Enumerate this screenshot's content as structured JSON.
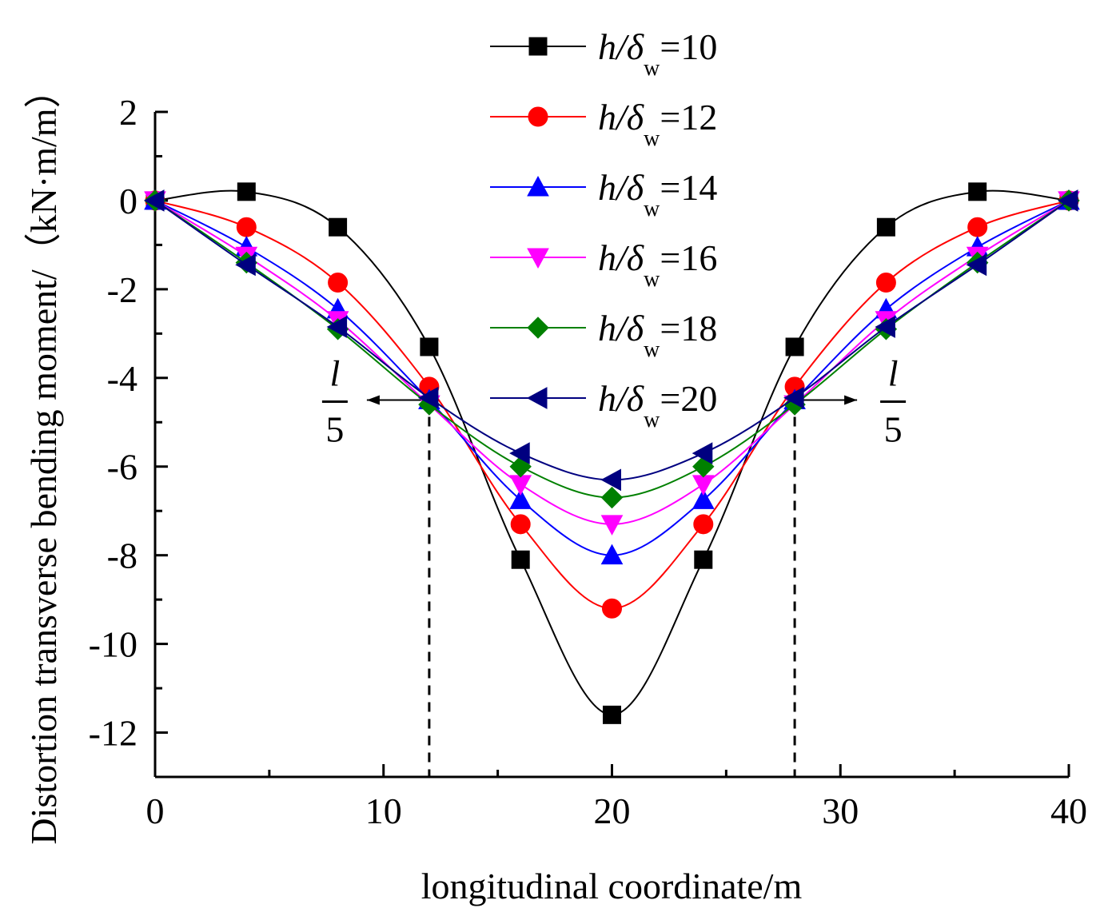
{
  "chart_data": {
    "type": "line",
    "xlabel": "longitudinal coordinate/m",
    "ylabel": "Distortion transverse bending moment/（kN·m/m）",
    "xlim": [
      0,
      40
    ],
    "ylim": [
      -13,
      2
    ],
    "xticks": [
      0,
      10,
      20,
      30,
      40
    ],
    "yticks": [
      2,
      0,
      -2,
      -4,
      -6,
      -8,
      -10,
      -12
    ],
    "grid": false,
    "legend_position": "top-center",
    "x": [
      0,
      4,
      8,
      12,
      16,
      20,
      24,
      28,
      32,
      36,
      40
    ],
    "series": [
      {
        "name": "h/δw=10",
        "label_main": "h/δ",
        "label_sub": "w",
        "label_value": "=10",
        "color": "#000000",
        "marker": "square",
        "values": [
          0,
          0.2,
          -0.6,
          -3.3,
          -8.1,
          -11.6,
          -8.1,
          -3.3,
          -0.6,
          0.2,
          0
        ]
      },
      {
        "name": "h/δw=12",
        "label_main": "h/δ",
        "label_sub": "w",
        "label_value": "=12",
        "color": "#ff0000",
        "marker": "circle",
        "values": [
          0,
          -0.6,
          -1.85,
          -4.2,
          -7.3,
          -9.2,
          -7.3,
          -4.2,
          -1.85,
          -0.6,
          0
        ]
      },
      {
        "name": "h/δw=14",
        "label_main": "h/δ",
        "label_sub": "w",
        "label_value": "=14",
        "color": "#0000ff",
        "marker": "triangle-up",
        "values": [
          0,
          -1.05,
          -2.45,
          -4.5,
          -6.75,
          -8.0,
          -6.75,
          -4.5,
          -2.45,
          -1.05,
          0
        ]
      },
      {
        "name": "h/δw=16",
        "label_main": "h/δ",
        "label_sub": "w",
        "label_value": "=16",
        "color": "#ff00ff",
        "marker": "triangle-down",
        "values": [
          0,
          -1.25,
          -2.7,
          -4.6,
          -6.4,
          -7.3,
          -6.4,
          -4.6,
          -2.7,
          -1.25,
          0
        ]
      },
      {
        "name": "h/δw=18",
        "label_main": "h/δ",
        "label_sub": "w",
        "label_value": "=18",
        "color": "#008000",
        "marker": "diamond",
        "values": [
          0,
          -1.4,
          -2.9,
          -4.6,
          -6.0,
          -6.7,
          -6.0,
          -4.6,
          -2.9,
          -1.4,
          0
        ]
      },
      {
        "name": "h/δw=20",
        "label_main": "h/δ",
        "label_sub": "w",
        "label_value": "=20",
        "color": "#000080",
        "marker": "triangle-left",
        "values": [
          0,
          -1.45,
          -2.85,
          -4.45,
          -5.7,
          -6.3,
          -5.7,
          -4.45,
          -2.85,
          -1.45,
          0
        ]
      }
    ],
    "reference_lines": [
      {
        "x": 12,
        "style": "dashed"
      },
      {
        "x": 28,
        "style": "dashed"
      }
    ],
    "annotations": [
      {
        "numerator": "l",
        "denominator": "5",
        "at_x": 12,
        "at_y": -4.5,
        "direction": "left"
      },
      {
        "numerator": "l",
        "denominator": "5",
        "at_x": 28,
        "at_y": -4.5,
        "direction": "right"
      }
    ]
  }
}
